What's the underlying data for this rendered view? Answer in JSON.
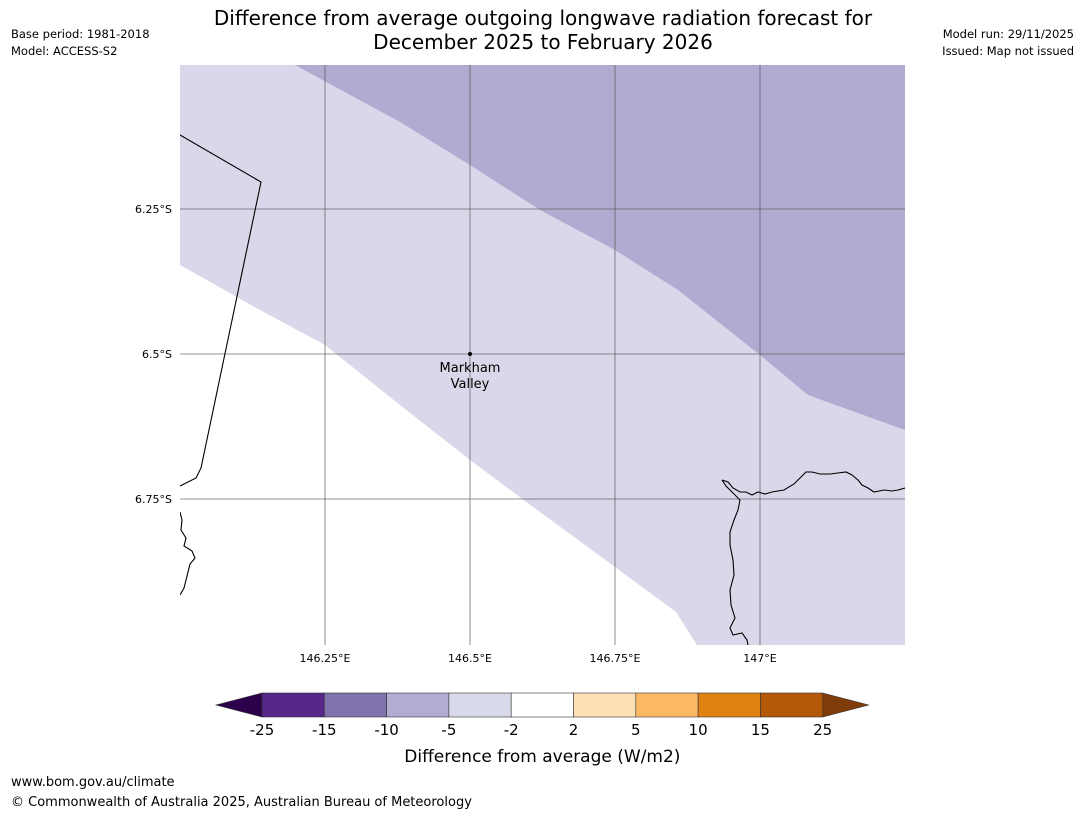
{
  "header": {
    "base_period": "Base period: 1981-2018",
    "model": "Model: ACCESS-S2",
    "model_run": "Model run: 29/11/2025",
    "issued": "Issued: Map not issued",
    "title_line1": "Difference from average outgoing longwave radiation forecast for",
    "title_line2": "December 2025 to February 2026"
  },
  "map": {
    "lon_labels": [
      "146.25°E",
      "146.5°E",
      "146.75°E",
      "147°E"
    ],
    "lat_labels": [
      "6.25°S",
      "6.5°S",
      "6.75°S"
    ],
    "place": {
      "name_line1": "Markham",
      "name_line2": "Valley",
      "lon": 146.5,
      "lat": -6.5
    },
    "colors": {
      "band_minus_10_to_minus_5": "#b1abd2",
      "band_minus_5_to_minus_2": "#d8d8ea",
      "band_minus_2_to_2": "#ffffff",
      "grid": "#555555",
      "coast": "#000000"
    }
  },
  "legend": {
    "title": "Difference from average (W/m2)",
    "ticks": [
      "-25",
      "-15",
      "-10",
      "-5",
      "-2",
      "2",
      "5",
      "10",
      "15",
      "25"
    ],
    "low_extend_color": "#2d004b",
    "high_extend_color": "#7f3b08",
    "band_colors": [
      "#542788",
      "#8073ac",
      "#b2abd2",
      "#d8daeb",
      "#ffffff",
      "#fee0b6",
      "#fdb863",
      "#e08214",
      "#b35806"
    ]
  },
  "footer": {
    "url": "www.bom.gov.au/climate",
    "copyright": "© Commonwealth of Australia 2025, Australian Bureau of Meteorology"
  }
}
